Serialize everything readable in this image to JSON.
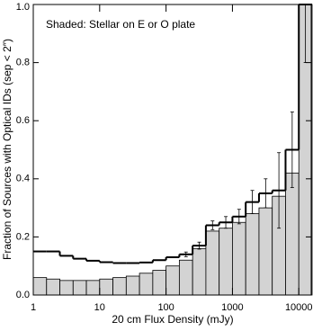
{
  "chart_data": {
    "type": "histogram",
    "annotation": "Shaded: Stellar on E or O plate",
    "xlabel": "20 cm Flux Density (mJy)",
    "ylabel": "Fraction of Sources with Optical IDs (sep < 2″)",
    "log_x": true,
    "bins": [
      1,
      1.585,
      2.512,
      3.981,
      6.31,
      10,
      15.85,
      25.12,
      39.81,
      63.1,
      100,
      158.5,
      251.2,
      398.1,
      631,
      1000,
      1585,
      2512,
      3981,
      6310,
      10000,
      15850
    ],
    "series": [
      {
        "color": "#d3d3d3",
        "filled": true,
        "values": [
          0.06,
          0.055,
          0.05,
          0.05,
          0.05,
          0.055,
          0.06,
          0.065,
          0.075,
          0.085,
          0.1,
          0.12,
          0.16,
          0.22,
          0.23,
          0.25,
          0.28,
          0.3,
          0.34,
          0.42,
          1.0
        ]
      },
      {
        "color": "#000000",
        "filled": false,
        "values": [
          0.15,
          0.15,
          0.135,
          0.125,
          0.118,
          0.113,
          0.11,
          0.11,
          0.112,
          0.12,
          0.13,
          0.14,
          0.17,
          0.24,
          0.25,
          0.27,
          0.32,
          0.35,
          0.36,
          0.5,
          1.0
        ],
        "errors": [
          null,
          null,
          null,
          null,
          null,
          null,
          null,
          null,
          null,
          null,
          null,
          0.008,
          0.012,
          0.015,
          0.02,
          0.025,
          0.04,
          0.05,
          0.13,
          0.13,
          0.2
        ]
      }
    ],
    "xlim": [
      1,
      15850
    ],
    "xticks": [
      1,
      10,
      100,
      1000,
      10000
    ],
    "ylim": [
      0,
      1
    ],
    "yticks": [
      {
        "value": 0,
        "label": "0.0"
      },
      0.2,
      0.4,
      0.6,
      0.8,
      {
        "value": 1,
        "label": "1.0"
      }
    ]
  }
}
